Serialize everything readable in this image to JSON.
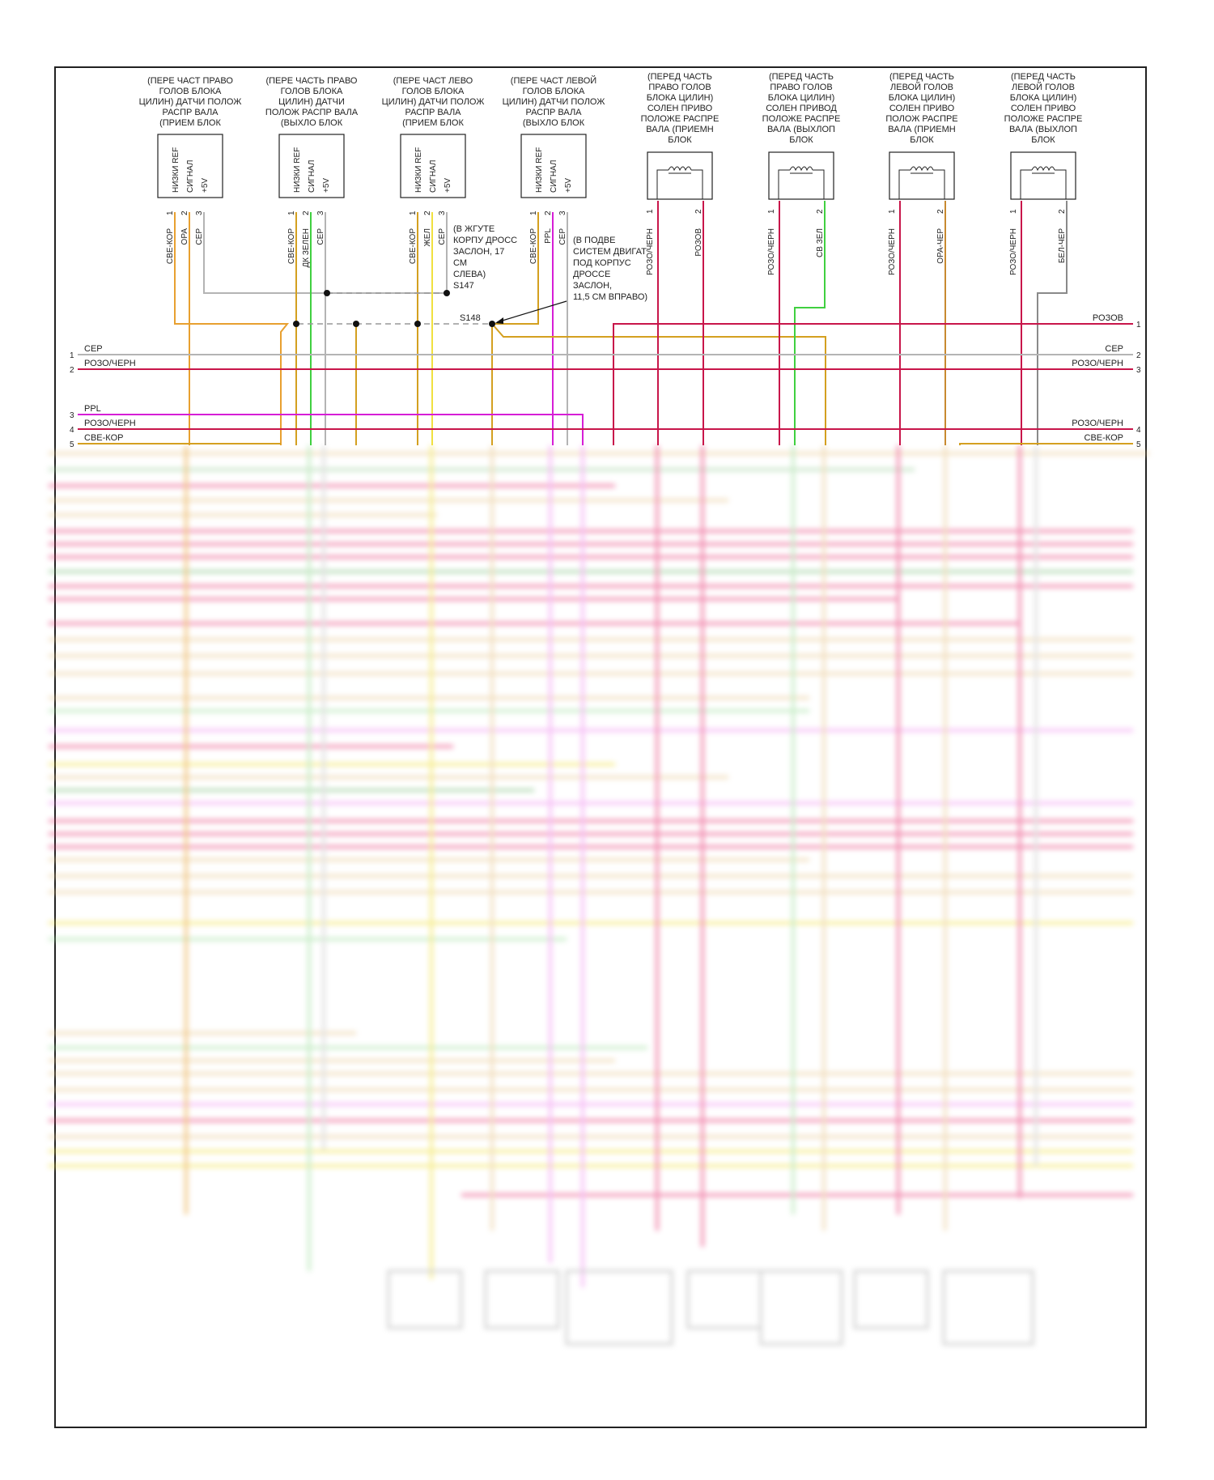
{
  "components": [
    {
      "id": "c1",
      "lines": [
        "(ПЕРЕ ЧАСТ ПРАВО",
        "ГОЛОВ БЛОКА",
        "ЦИЛИН) ДАТЧИ ПОЛОЖ",
        "РАСПР ВАЛА",
        "(ПРИЕМ БЛОК"
      ],
      "pins": [
        "НИЗКИ REF",
        "СИГНАЛ",
        "+5V"
      ],
      "pin_nums": [
        "1",
        "2",
        "3"
      ],
      "wires": [
        "СВЕ-КОР",
        "ОРА",
        "СЕР"
      ]
    },
    {
      "id": "c2",
      "lines": [
        "(ПЕРЕ ЧАСТЬ ПРАВО",
        "ГОЛОВ БЛОКА",
        "ЦИЛИН) ДАТЧИ",
        "ПОЛОЖ РАСПР ВАЛА",
        "(ВЫХЛО БЛОК"
      ],
      "pins": [
        "НИЗКИ REF",
        "СИГНАЛ",
        "+5V"
      ],
      "pin_nums": [
        "1",
        "2",
        "3"
      ],
      "wires": [
        "СВЕ-КОР",
        "ДК ЗЕЛЕН",
        "СЕР"
      ]
    },
    {
      "id": "c3",
      "lines": [
        "(ПЕРЕ ЧАСТ ЛЕВО",
        "ГОЛОВ БЛОКА",
        "ЦИЛИН) ДАТЧИ ПОЛОЖ",
        "РАСПР ВАЛА",
        "(ПРИЕМ БЛОК"
      ],
      "pins": [
        "НИЗКИ REF",
        "СИГНАЛ",
        "+5V"
      ],
      "pin_nums": [
        "1",
        "2",
        "3"
      ],
      "wires": [
        "СВЕ-КОР",
        "ЖЕЛ",
        "СЕР"
      ]
    },
    {
      "id": "c4",
      "lines": [
        "(ПЕРЕ ЧАСТ ЛЕВОЙ",
        "ГОЛОВ БЛОКА",
        "ЦИЛИН) ДАТЧИ ПОЛОЖ",
        "РАСПР ВАЛА",
        "(ВЫХЛО БЛОК"
      ],
      "pins": [
        "НИЗКИ REF",
        "СИГНАЛ",
        "+5V"
      ],
      "pin_nums": [
        "1",
        "2",
        "3"
      ],
      "wires": [
        "СВЕ-КОР",
        "PPL",
        "СЕР"
      ]
    },
    {
      "id": "c5",
      "lines": [
        "(ПЕРЕД ЧАСТЬ",
        "ПРАВО ГОЛОВ",
        "БЛОКА ЦИЛИН)",
        "СОЛЕН ПРИВО",
        "ПОЛОЖЕ РАСПРЕ",
        "ВАЛА (ПРИЕМН",
        "БЛОК"
      ],
      "pin_nums": [
        "1",
        "2"
      ],
      "wires": [
        "РОЗО/ЧЕРН",
        "РОЗОВ"
      ]
    },
    {
      "id": "c6",
      "lines": [
        "(ПЕРЕД ЧАСТЬ",
        "ПРАВО ГОЛОВ",
        "БЛОКА ЦИЛИН)",
        "СОЛЕН ПРИВОД",
        "ПОЛОЖЕ РАСПРЕ",
        "ВАЛА (ВЫХЛОП",
        "БЛОК"
      ],
      "pin_nums": [
        "1",
        "2"
      ],
      "wires": [
        "РОЗО/ЧЕРН",
        "СВ ЗЕЛ"
      ]
    },
    {
      "id": "c7",
      "lines": [
        "(ПЕРЕД ЧАСТЬ",
        "ЛЕВОЙ ГОЛОВ",
        "БЛОКА ЦИЛИН)",
        "СОЛЕН ПРИВО",
        "ПОЛОЖ РАСПРЕ",
        "ВАЛА (ПРИЕМН",
        "БЛОК"
      ],
      "pin_nums": [
        "1",
        "2"
      ],
      "wires": [
        "РОЗО/ЧЕРН",
        "ОРА-ЧЕР"
      ]
    },
    {
      "id": "c8",
      "lines": [
        "(ПЕРЕД ЧАСТЬ",
        "ЛЕВОЙ ГОЛОВ",
        "БЛОКА ЦИЛИН)",
        "СОЛЕН ПРИВО",
        "ПОЛОЖЕ РАСПРЕ",
        "ВАЛА (ВЫХЛОП",
        "БЛОК"
      ],
      "pin_nums": [
        "1",
        "2"
      ],
      "wires": [
        "РОЗО/ЧЕРН",
        "БЕЛ-ЧЕР"
      ]
    }
  ],
  "splices": {
    "s147": {
      "lines": [
        "(В ЖГУТЕ",
        "КОРПУ ДРОСС",
        "ЗАСЛОН, 17",
        "СМ",
        "СЛЕВА)",
        "S147"
      ]
    },
    "s148": {
      "label": "S148",
      "lines": [
        "(В ПОДВЕ",
        "СИСТЕМ ДВИГАТ",
        "ПОД КОРПУС",
        "ДРОССЕ",
        "ЗАСЛОН,",
        "11,5 СМ ВПРАВО)"
      ]
    }
  },
  "buses": {
    "left": [
      {
        "num": "1",
        "label": "СЕР",
        "color": "#b4b4b4"
      },
      {
        "num": "2",
        "label": "РОЗО/ЧЕРН",
        "color": "#c8164a"
      },
      {
        "num": "3",
        "label": "PPL",
        "color": "#d61ed6"
      },
      {
        "num": "4",
        "label": "РОЗО/ЧЕРН",
        "color": "#c8164a"
      },
      {
        "num": "5",
        "label": "СВЕ-КОР",
        "color": "#d4a020"
      }
    ],
    "right": [
      {
        "num": "1",
        "label": "РОЗОВ",
        "color": "#c8164a"
      },
      {
        "num": "2",
        "label": "СЕР",
        "color": "#b4b4b4"
      },
      {
        "num": "3",
        "label": "РОЗО/ЧЕРН",
        "color": "#c8164a"
      },
      {
        "num": "4",
        "label": "РОЗО/ЧЕРН",
        "color": "#c8164a"
      },
      {
        "num": "5",
        "label": "СВЕ-КОР",
        "color": "#d4a020"
      }
    ]
  },
  "colors": {
    "orange": "#e8a030",
    "yellow": "#f0e040",
    "green": "#40d040",
    "gray": "#b4b4b4",
    "pink": "#e83c78",
    "magenta": "#d61ed6",
    "tan": "#e8c890",
    "frame": "#222222"
  }
}
